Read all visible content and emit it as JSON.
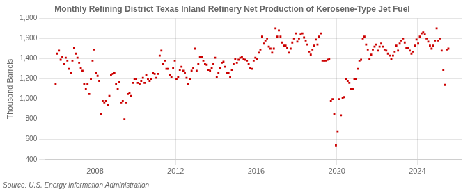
{
  "chart_data": {
    "type": "scatter",
    "title": "Monthly Refining District Texas Inland Refinery Net Production of Kerosene-Type Jet Fuel",
    "ylabel": "Thousand Barrels",
    "source": "Source: U.S. Energy Information Administration",
    "color": "#cc0000",
    "marker": "square",
    "grid": true,
    "xlim": [
      2005.5,
      2026.2
    ],
    "xticks": [
      2008,
      2012,
      2016,
      2020,
      2024
    ],
    "ylim": [
      400,
      1800
    ],
    "yticks": [
      400,
      600,
      800,
      {
        "value": 1000,
        "label": "1,000"
      },
      {
        "value": 1200,
        "label": "1,200"
      },
      {
        "value": 1400,
        "label": "1,400"
      },
      {
        "value": 1600,
        "label": "1,600"
      },
      {
        "value": 1800,
        "label": "1,800"
      }
    ],
    "x": [
      2006.0416666666667,
      2006.125,
      2006.2083333333333,
      2006.2916666666667,
      2006.375,
      2006.4583333333333,
      2006.5416666666667,
      2006.625,
      2006.7083333333333,
      2006.7916666666667,
      2006.875,
      2006.9583333333333,
      2007.0416666666667,
      2007.125,
      2007.2083333333333,
      2007.2916666666667,
      2007.375,
      2007.4583333333333,
      2007.5416666666667,
      2007.625,
      2007.7083333333333,
      2007.7916666666667,
      2007.875,
      2007.9583333333333,
      2008.0416666666667,
      2008.125,
      2008.2083333333333,
      2008.2916666666667,
      2008.375,
      2008.4583333333333,
      2008.5416666666667,
      2008.625,
      2008.7083333333333,
      2008.7916666666667,
      2008.875,
      2008.9583333333333,
      2009.0416666666667,
      2009.125,
      2009.2083333333333,
      2009.2916666666667,
      2009.375,
      2009.4583333333333,
      2009.5416666666667,
      2009.625,
      2009.7083333333333,
      2009.7916666666667,
      2009.875,
      2009.9583333333333,
      2010.0416666666667,
      2010.125,
      2010.2083333333333,
      2010.2916666666667,
      2010.375,
      2010.4583333333333,
      2010.5416666666667,
      2010.625,
      2010.7083333333333,
      2010.7916666666667,
      2010.875,
      2010.9583333333333,
      2011.0416666666667,
      2011.125,
      2011.2083333333333,
      2011.2916666666667,
      2011.375,
      2011.4583333333333,
      2011.5416666666667,
      2011.625,
      2011.7083333333333,
      2011.7916666666667,
      2011.875,
      2011.9583333333333,
      2012.0416666666667,
      2012.125,
      2012.2083333333333,
      2012.2916666666667,
      2012.375,
      2012.4583333333333,
      2012.5416666666667,
      2012.625,
      2012.7083333333333,
      2012.7916666666667,
      2012.875,
      2012.9583333333333,
      2013.0416666666667,
      2013.125,
      2013.2083333333333,
      2013.2916666666667,
      2013.375,
      2013.4583333333333,
      2013.5416666666667,
      2013.625,
      2013.7083333333333,
      2013.7916666666667,
      2013.875,
      2013.9583333333333,
      2014.0416666666667,
      2014.125,
      2014.2083333333333,
      2014.2916666666667,
      2014.375,
      2014.4583333333333,
      2014.5416666666667,
      2014.625,
      2014.7083333333333,
      2014.7916666666667,
      2014.875,
      2014.9583333333333,
      2015.0416666666667,
      2015.125,
      2015.2083333333333,
      2015.2916666666667,
      2015.375,
      2015.4583333333333,
      2015.5416666666667,
      2015.625,
      2015.7083333333333,
      2015.7916666666667,
      2015.875,
      2015.9583333333333,
      2016.0416666666667,
      2016.125,
      2016.2083333333333,
      2016.2916666666667,
      2016.375,
      2016.4583333333333,
      2016.5416666666667,
      2016.625,
      2016.7083333333333,
      2016.7916666666667,
      2016.875,
      2016.9583333333333,
      2017.0416666666667,
      2017.125,
      2017.2083333333333,
      2017.2916666666667,
      2017.375,
      2017.4583333333333,
      2017.5416666666667,
      2017.625,
      2017.7083333333333,
      2017.7916666666667,
      2017.875,
      2017.9583333333333,
      2018.0416666666667,
      2018.125,
      2018.2083333333333,
      2018.2916666666667,
      2018.375,
      2018.4583333333333,
      2018.5416666666667,
      2018.625,
      2018.7083333333333,
      2018.7916666666667,
      2018.875,
      2018.9583333333333,
      2019.0416666666667,
      2019.125,
      2019.2083333333333,
      2019.2916666666667,
      2019.375,
      2019.4583333333333,
      2019.5416666666667,
      2019.625,
      2019.7083333333333,
      2019.7916666666667,
      2019.875,
      2019.9583333333333,
      2020.0416666666667,
      2020.125,
      2020.2083333333333,
      2020.2916666666667,
      2020.375,
      2020.4583333333333,
      2020.5416666666667,
      2020.625,
      2020.7083333333333,
      2020.7916666666667,
      2020.875,
      2020.9583333333333,
      2021.0416666666667,
      2021.125,
      2021.2083333333333,
      2021.2916666666667,
      2021.375,
      2021.4583333333333,
      2021.5416666666667,
      2021.625,
      2021.7083333333333,
      2021.7916666666667,
      2021.875,
      2021.9583333333333,
      2022.0416666666667,
      2022.125,
      2022.2083333333333,
      2022.2916666666667,
      2022.375,
      2022.4583333333333,
      2022.5416666666667,
      2022.625,
      2022.7083333333333,
      2022.7916666666667,
      2022.875,
      2022.9583333333333,
      2023.0416666666667,
      2023.125,
      2023.2083333333333,
      2023.2916666666667,
      2023.375,
      2023.4583333333333,
      2023.5416666666667,
      2023.625,
      2023.7083333333333,
      2023.7916666666667,
      2023.875,
      2023.9583333333333,
      2024.0416666666667,
      2024.125,
      2024.2083333333333,
      2024.2916666666667,
      2024.375,
      2024.4583333333333,
      2024.5416666666667,
      2024.625,
      2024.7083333333333,
      2024.7916666666667,
      2024.875,
      2024.9583333333333,
      2025.0416666666667,
      2025.125,
      2025.2083333333333,
      2025.2916666666667,
      2025.375,
      2025.4583333333333,
      2025.5416666666667
    ],
    "values": [
      1150,
      1450,
      1480,
      1390,
      1420,
      1350,
      1410,
      1380,
      1300,
      1260,
      1380,
      1510,
      1450,
      1410,
      1360,
      1310,
      1280,
      1150,
      1100,
      1150,
      1050,
      1200,
      1380,
      1490,
      1260,
      1230,
      1180,
      850,
      980,
      960,
      980,
      940,
      1030,
      1240,
      1250,
      1260,
      1150,
      1100,
      1170,
      960,
      980,
      800,
      960,
      1050,
      1060,
      1030,
      1160,
      1200,
      1200,
      1160,
      1150,
      1180,
      1210,
      1160,
      1240,
      1200,
      1180,
      1200,
      1260,
      1250,
      1210,
      1250,
      1430,
      1480,
      1350,
      1380,
      1300,
      1300,
      1240,
      1220,
      1310,
      1380,
      1200,
      1220,
      1290,
      1320,
      1280,
      1260,
      1210,
      1150,
      1200,
      1280,
      1310,
      1500,
      1280,
      1350,
      1420,
      1420,
      1380,
      1350,
      1340,
      1290,
      1280,
      1310,
      1350,
      1410,
      1220,
      1260,
      1310,
      1360,
      1370,
      1320,
      1260,
      1260,
      1220,
      1290,
      1350,
      1400,
      1360,
      1390,
      1410,
      1420,
      1400,
      1390,
      1380,
      1350,
      1310,
      1300,
      1380,
      1410,
      1400,
      1460,
      1490,
      1620,
      1550,
      1580,
      1600,
      1520,
      1500,
      1460,
      1500,
      1700,
      1620,
      1680,
      1620,
      1560,
      1530,
      1530,
      1510,
      1460,
      1500,
      1560,
      1600,
      1650,
      1570,
      1600,
      1640,
      1650,
      1610,
      1580,
      1540,
      1470,
      1440,
      1490,
      1530,
      1590,
      1540,
      1620,
      1650,
      1380,
      1380,
      1380,
      1390,
      1400,
      980,
      1000,
      850,
      540,
      680,
      1000,
      840,
      1010,
      1020,
      1200,
      1180,
      1160,
      1100,
      1100,
      1200,
      1200,
      1300,
      1380,
      1390,
      1600,
      1620,
      1540,
      1490,
      1400,
      1440,
      1490,
      1520,
      1540,
      1480,
      1520,
      1550,
      1520,
      1490,
      1480,
      1450,
      1430,
      1400,
      1430,
      1470,
      1530,
      1480,
      1550,
      1580,
      1600,
      1560,
      1510,
      1510,
      1480,
      1450,
      1470,
      1530,
      1590,
      1550,
      1620,
      1650,
      1660,
      1640,
      1600,
      1570,
      1530,
      1500,
      1530,
      1580,
      1700,
      1580,
      1600,
      1480,
      1290,
      1140,
      1490,
      1500
    ]
  }
}
